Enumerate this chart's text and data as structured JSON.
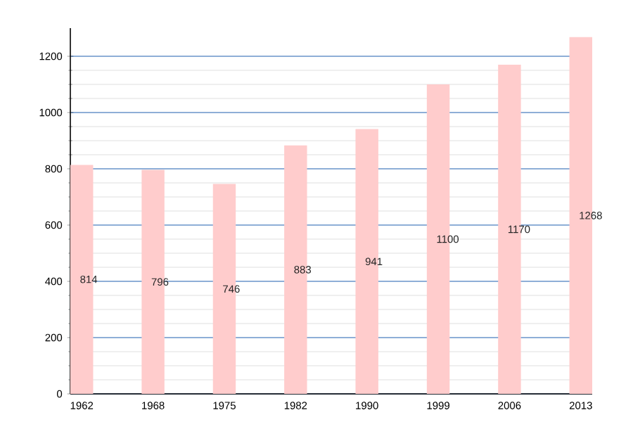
{
  "chart_data": {
    "type": "bar",
    "categories": [
      "1962",
      "1968",
      "1975",
      "1982",
      "1990",
      "1999",
      "2006",
      "2013"
    ],
    "values": [
      814,
      796,
      746,
      883,
      941,
      1100,
      1170,
      1268
    ],
    "color": "#ffcccc",
    "ylim": [
      0,
      1300
    ],
    "yticks": [
      0,
      200,
      400,
      600,
      800,
      1000,
      1200
    ],
    "grid": "y",
    "data_labels": true
  }
}
